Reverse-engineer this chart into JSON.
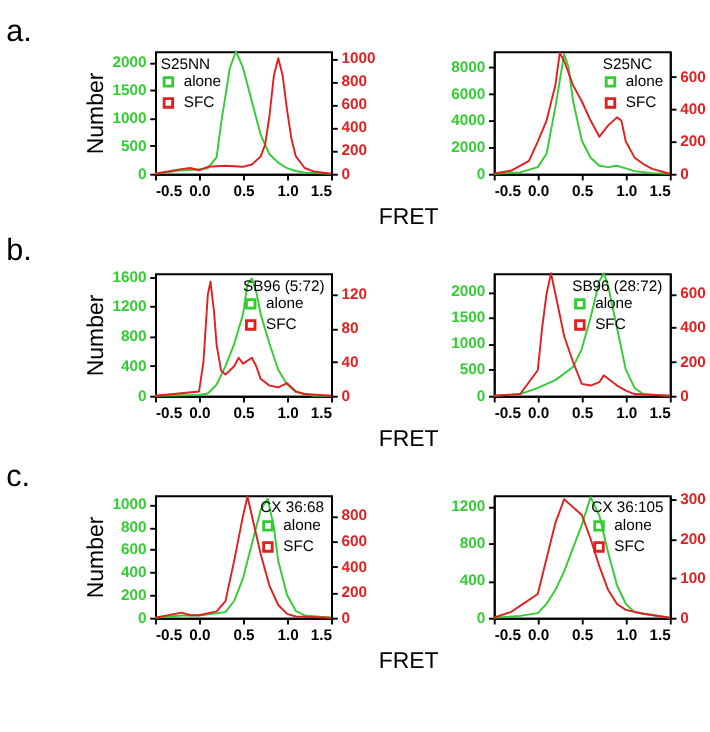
{
  "chart_data": [
    {
      "type": "line",
      "title": "a.",
      "ylabel": "Number",
      "xlabel": "FRET",
      "legend_title": "S25NN",
      "legend": "top left",
      "grid": false,
      "marker": "none",
      "line_style": "solid",
      "xlim": [
        -0.5,
        1.5
      ],
      "xticks": [
        {
          "value": -0.5,
          "label": "-0.5"
        },
        {
          "value": 0,
          "label": "0.0"
        },
        {
          "value": 0.5,
          "label": "0.5"
        },
        {
          "value": 1,
          "label": "1.0"
        },
        {
          "value": 1.5,
          "label": "1.5"
        }
      ],
      "ylim": [
        0,
        2200
      ],
      "yticks": [
        0,
        500,
        1000,
        1500,
        2000
      ],
      "y2lim": [
        0,
        1060
      ],
      "y2ticks": [
        0,
        200,
        400,
        600,
        800,
        1000
      ],
      "series": [
        {
          "name": "alone",
          "color": "#33cc33",
          "x": [
            -0.5,
            -0.2,
            0,
            0.1,
            0.2,
            0.25,
            0.3,
            0.35,
            0.42,
            0.5,
            0.6,
            0.7,
            0.8,
            0.9,
            1.0,
            1.1,
            1.2,
            1.5
          ],
          "values": [
            0,
            60,
            80,
            100,
            300,
            900,
            1400,
            1900,
            2200,
            1900,
            1300,
            700,
            350,
            200,
            100,
            50,
            20,
            0
          ]
        },
        {
          "name": "SFC",
          "color": "#e02020",
          "axis": "y2",
          "x": [
            -0.5,
            -0.2,
            -0.1,
            0,
            0.1,
            0.3,
            0.5,
            0.6,
            0.7,
            0.75,
            0.8,
            0.85,
            0.9,
            0.95,
            1.0,
            1.05,
            1.1,
            1.2,
            1.3,
            1.5
          ],
          "values": [
            0,
            40,
            50,
            30,
            60,
            70,
            60,
            80,
            150,
            250,
            500,
            850,
            1000,
            850,
            550,
            300,
            150,
            50,
            20,
            0
          ]
        }
      ]
    },
    {
      "type": "line",
      "legend_title": "S25NC",
      "legend": "top right",
      "grid": false,
      "marker": "none",
      "line_style": "solid",
      "xlim": [
        -0.5,
        1.5
      ],
      "xticks": [
        {
          "value": -0.5,
          "label": "-0.5"
        },
        {
          "value": 0,
          "label": "0.0"
        },
        {
          "value": 0.5,
          "label": "0.5"
        },
        {
          "value": 1,
          "label": "1.0"
        },
        {
          "value": 1.5,
          "label": "1.5"
        }
      ],
      "ylim": [
        0,
        9200
      ],
      "yticks": [
        0,
        2000,
        4000,
        6000,
        8000
      ],
      "y2lim": [
        0,
        760
      ],
      "y2ticks": [
        0,
        200,
        400,
        600
      ],
      "series": [
        {
          "name": "alone",
          "color": "#33cc33",
          "x": [
            -0.5,
            -0.2,
            0,
            0.1,
            0.2,
            0.3,
            0.35,
            0.4,
            0.5,
            0.6,
            0.7,
            0.8,
            0.9,
            1.0,
            1.1,
            1.3,
            1.5
          ],
          "values": [
            0,
            100,
            500,
            1500,
            5000,
            9000,
            8000,
            5500,
            2500,
            1200,
            600,
            500,
            600,
            400,
            200,
            50,
            0
          ]
        },
        {
          "name": "SFC",
          "color": "#e02020",
          "axis": "y2",
          "x": [
            -0.5,
            -0.3,
            -0.1,
            0,
            0.1,
            0.2,
            0.25,
            0.3,
            0.4,
            0.5,
            0.6,
            0.7,
            0.8,
            0.9,
            0.95,
            1.0,
            1.1,
            1.2,
            1.3,
            1.5
          ],
          "values": [
            0,
            20,
            80,
            200,
            330,
            550,
            750,
            700,
            550,
            450,
            330,
            230,
            300,
            350,
            330,
            200,
            100,
            60,
            30,
            0
          ]
        }
      ]
    },
    {
      "type": "line",
      "title": "b.",
      "ylabel": "Number",
      "xlabel": "FRET",
      "legend_title": "SB96 (5:72)",
      "legend": "top right",
      "grid": false,
      "marker": "none",
      "line_style": "solid",
      "xlim": [
        -0.5,
        1.5
      ],
      "xticks": [
        {
          "value": -0.5,
          "label": "-0.5"
        },
        {
          "value": 0,
          "label": "0.0"
        },
        {
          "value": 0.5,
          "label": "0.5"
        },
        {
          "value": 1,
          "label": "1.0"
        },
        {
          "value": 1.5,
          "label": "1.5"
        }
      ],
      "ylim": [
        0,
        1650
      ],
      "yticks": [
        0,
        400,
        800,
        1200,
        1600
      ],
      "y2lim": [
        0,
        145
      ],
      "y2ticks": [
        0,
        40,
        80,
        120
      ],
      "series": [
        {
          "name": "alone",
          "color": "#33cc33",
          "x": [
            -0.5,
            0,
            0.1,
            0.2,
            0.3,
            0.4,
            0.5,
            0.55,
            0.6,
            0.65,
            0.7,
            0.8,
            0.9,
            1.0,
            1.1,
            1.3,
            1.5
          ],
          "values": [
            0,
            10,
            30,
            150,
            400,
            700,
            1100,
            1500,
            1580,
            1400,
            1100,
            700,
            350,
            150,
            50,
            0,
            0
          ]
        },
        {
          "name": "SFC",
          "color": "#e02020",
          "axis": "y2",
          "x": [
            -0.5,
            -0.2,
            0,
            0.05,
            0.1,
            0.13,
            0.17,
            0.2,
            0.25,
            0.3,
            0.4,
            0.45,
            0.5,
            0.6,
            0.65,
            0.7,
            0.8,
            0.9,
            1.0,
            1.1,
            1.2,
            1.5
          ],
          "values": [
            0,
            3,
            5,
            40,
            120,
            135,
            100,
            60,
            30,
            25,
            35,
            45,
            38,
            45,
            35,
            20,
            12,
            10,
            15,
            5,
            2,
            0
          ]
        }
      ]
    },
    {
      "type": "line",
      "legend_title": "SB96 (28:72)",
      "legend": "top right",
      "grid": false,
      "marker": "none",
      "line_style": "solid",
      "xlim": [
        -0.5,
        1.5
      ],
      "xticks": [
        {
          "value": -0.5,
          "label": "-0.5"
        },
        {
          "value": 0,
          "label": "0.0"
        },
        {
          "value": 0.5,
          "label": "0.5"
        },
        {
          "value": 1,
          "label": "1.0"
        },
        {
          "value": 1.5,
          "label": "1.5"
        }
      ],
      "ylim": [
        0,
        2350
      ],
      "yticks": [
        0,
        500,
        1000,
        1500,
        2000
      ],
      "y2lim": [
        0,
        720
      ],
      "y2ticks": [
        0,
        200,
        400,
        600
      ],
      "series": [
        {
          "name": "alone",
          "color": "#33cc33",
          "x": [
            -0.5,
            -0.2,
            0,
            0.2,
            0.4,
            0.5,
            0.6,
            0.7,
            0.75,
            0.8,
            0.9,
            1.0,
            1.1,
            1.2,
            1.5
          ],
          "values": [
            0,
            30,
            150,
            300,
            550,
            900,
            1500,
            2200,
            2350,
            2100,
            1300,
            500,
            150,
            30,
            0
          ]
        },
        {
          "name": "SFC",
          "color": "#e02020",
          "axis": "y2",
          "x": [
            -0.5,
            -0.2,
            0,
            0.05,
            0.1,
            0.15,
            0.2,
            0.3,
            0.4,
            0.5,
            0.6,
            0.7,
            0.75,
            0.8,
            0.9,
            1.0,
            1.1,
            1.5
          ],
          "values": [
            0,
            10,
            150,
            400,
            600,
            720,
            600,
            350,
            200,
            70,
            60,
            80,
            120,
            100,
            60,
            30,
            10,
            0
          ]
        }
      ]
    },
    {
      "type": "line",
      "title": "c.",
      "ylabel": "Number",
      "xlabel": "FRET",
      "legend_title": "CX 36:68",
      "legend": "top right",
      "grid": false,
      "marker": "none",
      "line_style": "solid",
      "xlim": [
        -0.5,
        1.5
      ],
      "xticks": [
        {
          "value": -0.5,
          "label": "-0.5"
        },
        {
          "value": 0,
          "label": "0.0"
        },
        {
          "value": 0.5,
          "label": "0.5"
        },
        {
          "value": 1,
          "label": "1.0"
        },
        {
          "value": 1.5,
          "label": "1.5"
        }
      ],
      "ylim": [
        0,
        1080
      ],
      "yticks": [
        0,
        200,
        400,
        600,
        800,
        1000
      ],
      "y2lim": [
        0,
        960
      ],
      "y2ticks": [
        0,
        200,
        400,
        600,
        800
      ],
      "series": [
        {
          "name": "alone",
          "color": "#33cc33",
          "x": [
            -0.5,
            -0.2,
            0,
            0.3,
            0.4,
            0.5,
            0.6,
            0.7,
            0.78,
            0.85,
            0.9,
            1.0,
            1.1,
            1.2,
            1.5
          ],
          "values": [
            0,
            20,
            20,
            50,
            150,
            350,
            650,
            950,
            1050,
            800,
            500,
            200,
            60,
            20,
            0
          ]
        },
        {
          "name": "SFC",
          "color": "#e02020",
          "axis": "y2",
          "x": [
            -0.5,
            -0.2,
            -0.1,
            0,
            0.2,
            0.3,
            0.4,
            0.5,
            0.55,
            0.6,
            0.7,
            0.8,
            0.9,
            1.0,
            1.1,
            1.5
          ],
          "values": [
            0,
            40,
            20,
            20,
            50,
            130,
            450,
            800,
            950,
            800,
            500,
            250,
            100,
            30,
            10,
            0
          ]
        }
      ]
    },
    {
      "type": "line",
      "legend_title": "CX 36:105",
      "legend": "top right",
      "grid": false,
      "marker": "none",
      "line_style": "solid",
      "xlim": [
        -0.5,
        1.5
      ],
      "xticks": [
        {
          "value": -0.5,
          "label": "-0.5"
        },
        {
          "value": 0,
          "label": "0.0"
        },
        {
          "value": 0.5,
          "label": "0.5"
        },
        {
          "value": 1,
          "label": "1.0"
        },
        {
          "value": 1.5,
          "label": "1.5"
        }
      ],
      "ylim": [
        0,
        1320
      ],
      "yticks": [
        0,
        400,
        800,
        1200
      ],
      "y2lim": [
        0,
        310
      ],
      "y2ticks": [
        0,
        100,
        200,
        300
      ],
      "series": [
        {
          "name": "alone",
          "color": "#33cc33",
          "x": [
            -0.5,
            -0.2,
            0,
            0.1,
            0.2,
            0.3,
            0.4,
            0.5,
            0.6,
            0.7,
            0.8,
            0.9,
            1.0,
            1.1,
            1.5
          ],
          "values": [
            0,
            20,
            50,
            150,
            300,
            500,
            750,
            1000,
            1300,
            1100,
            700,
            350,
            150,
            60,
            0
          ]
        },
        {
          "name": "SFC",
          "color": "#e02020",
          "axis": "y2",
          "x": [
            -0.5,
            -0.3,
            -0.2,
            0,
            0.1,
            0.2,
            0.3,
            0.4,
            0.5,
            0.6,
            0.7,
            0.8,
            0.9,
            1.0,
            1.2,
            1.5
          ],
          "values": [
            0,
            15,
            30,
            60,
            150,
            240,
            300,
            280,
            260,
            200,
            130,
            70,
            35,
            20,
            10,
            0
          ]
        }
      ]
    }
  ]
}
